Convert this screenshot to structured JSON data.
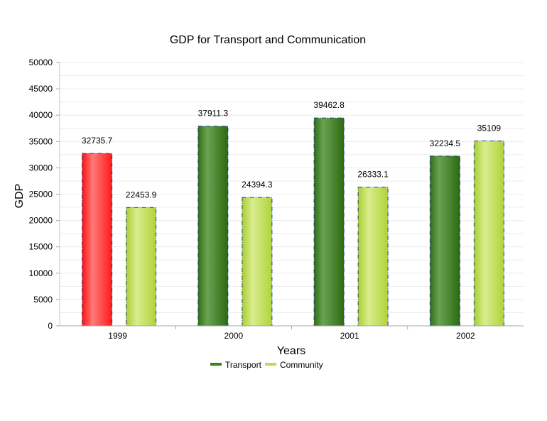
{
  "chart_data": {
    "type": "bar",
    "title": "GDP for Transport and Communication",
    "xlabel": "Years",
    "ylabel": "GDP",
    "categories": [
      "1999",
      "2000",
      "2001",
      "2002"
    ],
    "series": [
      {
        "name": "Transport",
        "values": [
          32735.7,
          37911.3,
          39462.8,
          32234.5
        ],
        "color": "#3f7f1c",
        "label_text": [
          "32735.7",
          "37911.3",
          "39462.8",
          "32234.5"
        ]
      },
      {
        "name": "Community",
        "values": [
          22453.9,
          24394.3,
          26333.1,
          35109
        ],
        "color": "#bfdc4a",
        "label_text": [
          "22453.9",
          "24394.3",
          "26333.1",
          "35109"
        ]
      }
    ],
    "highlight": {
      "series": 0,
      "index": 0,
      "color": "#ff2020"
    },
    "ylim": [
      0,
      50000
    ],
    "yticks": [
      "0",
      "5000",
      "10000",
      "15000",
      "20000",
      "25000",
      "30000",
      "35000",
      "40000",
      "45000",
      "50000"
    ],
    "grid": true,
    "legend": "bottom"
  }
}
